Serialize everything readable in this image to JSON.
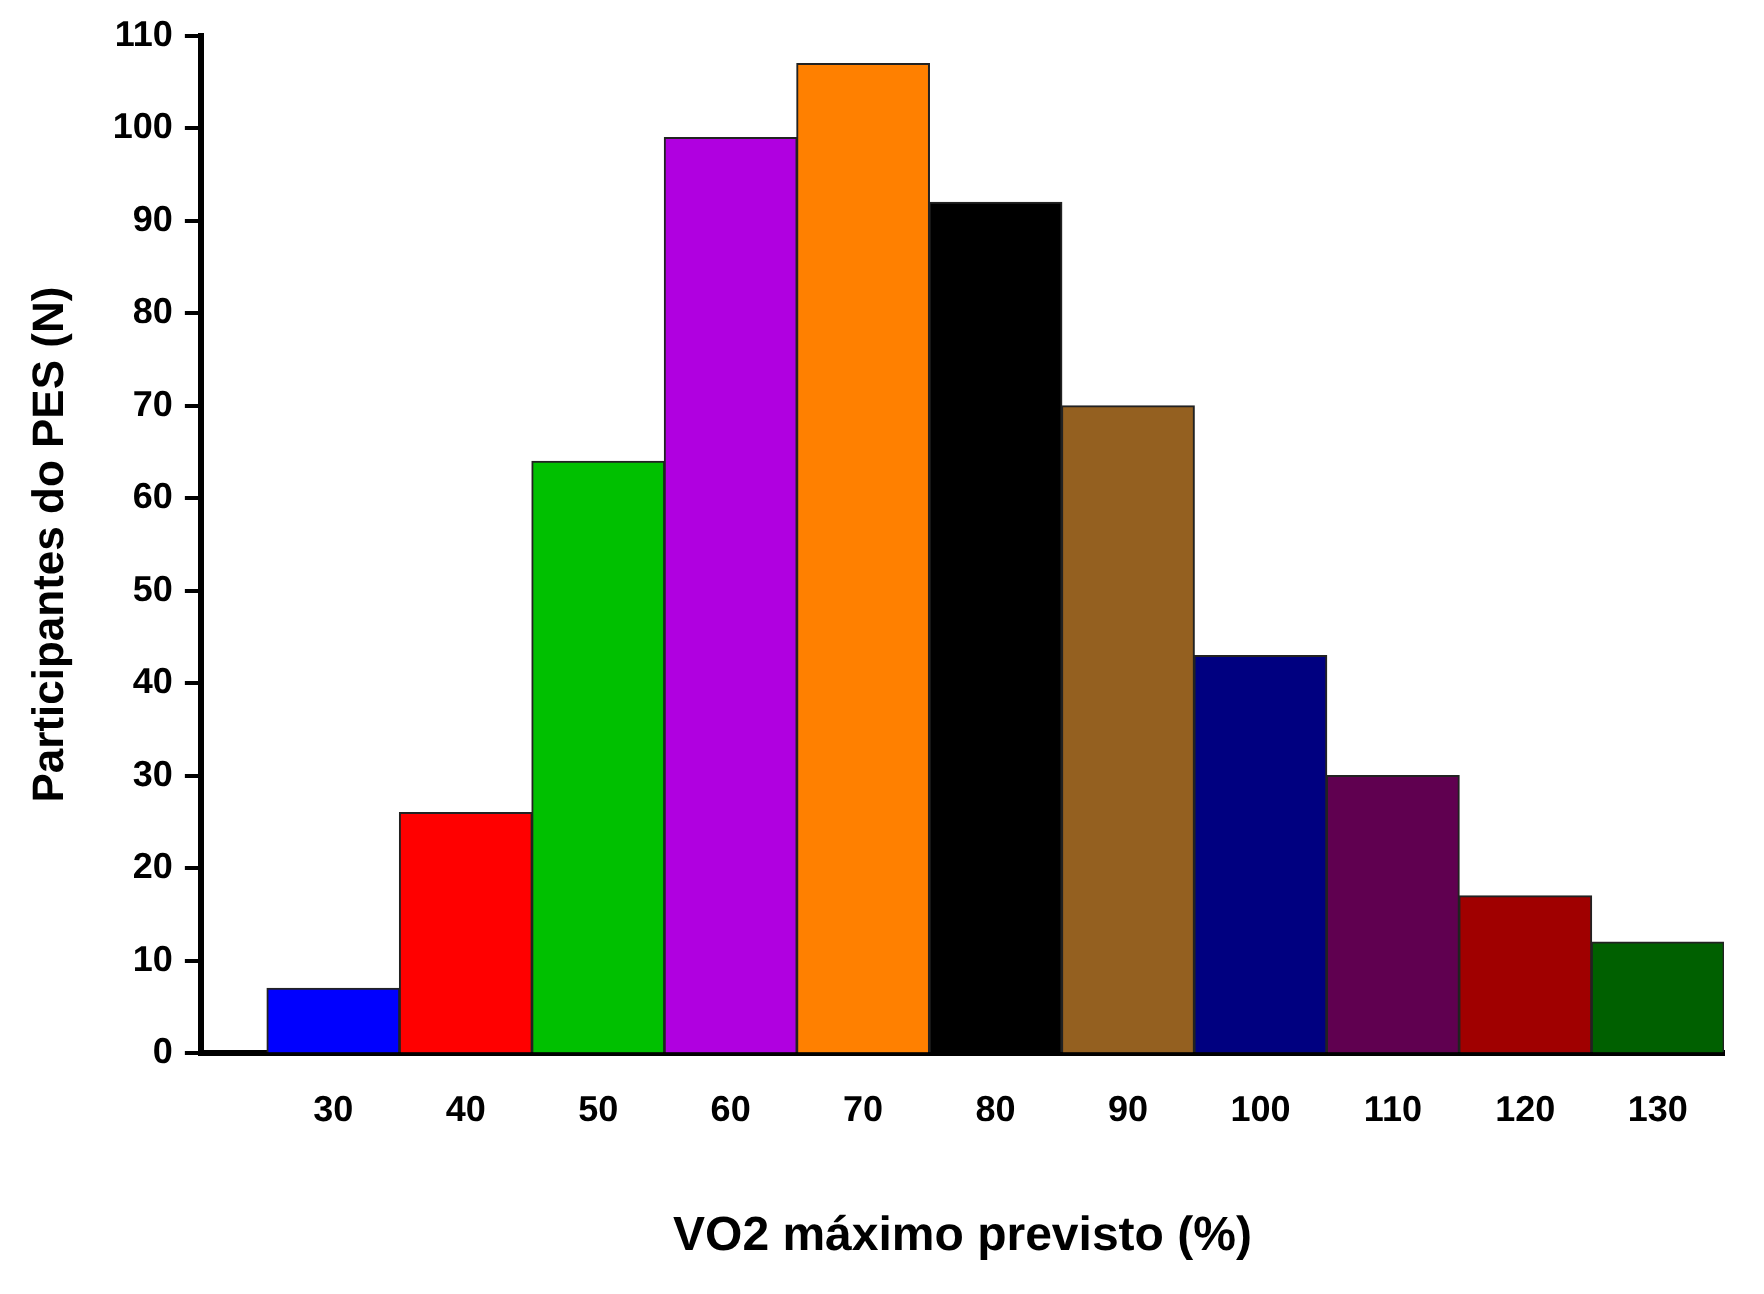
{
  "chart_data": {
    "type": "histogram",
    "xlabel": "VO2 máximo previsto (%)",
    "ylabel": "Participantes do PES (N)",
    "bins": [
      25,
      35,
      45,
      55,
      65,
      75,
      85,
      95,
      105,
      115,
      125,
      135
    ],
    "values": [
      7,
      26,
      64,
      99,
      107,
      92,
      70,
      43,
      30,
      17,
      12
    ],
    "colors": [
      "#0000ff",
      "#ff0000",
      "#00c000",
      "#b000e0",
      "#ff8000",
      "#000000",
      "#946020",
      "#000080",
      "#600050",
      "#a00000",
      "#006000"
    ],
    "xlim": [
      20,
      135
    ],
    "xticks": [
      30,
      40,
      50,
      60,
      70,
      80,
      90,
      100,
      110,
      120,
      130
    ],
    "ylim": [
      0,
      110
    ],
    "yticks": [
      0,
      10,
      20,
      30,
      40,
      50,
      60,
      70,
      80,
      90,
      100,
      110
    ],
    "grid": false,
    "legend": false
  }
}
